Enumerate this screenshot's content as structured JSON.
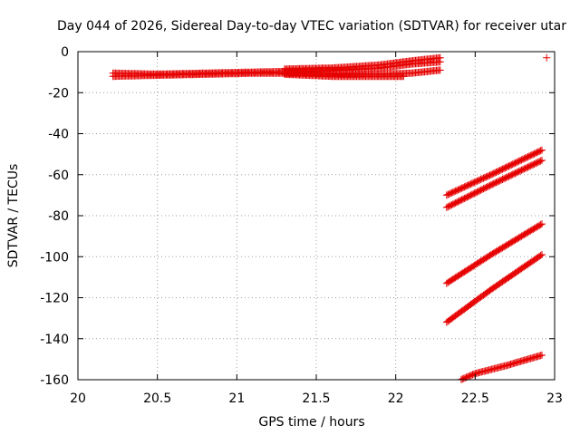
{
  "chart_data": {
    "type": "scatter",
    "title": "Day 044 of 2026, Sidereal Day-to-day VTEC variation (SDTVAR) for receiver utar",
    "xlabel": "GPS time / hours",
    "ylabel": "SDTVAR / TECUs",
    "xlim": [
      20,
      23
    ],
    "ylim": [
      -160,
      0
    ],
    "xticks": [
      "20",
      "20.5",
      "21",
      "21.5",
      "22",
      "22.5",
      "23"
    ],
    "yticks": [
      "0",
      "-20",
      "-40",
      "-60",
      "-80",
      "-100",
      "-120",
      "-140",
      "-160"
    ],
    "grid": true,
    "marker": "+",
    "color": "#e60000",
    "series": [
      {
        "points": [
          [
            20.22,
            -10.5
          ],
          [
            20.5,
            -11
          ],
          [
            20.8,
            -10.5
          ],
          [
            21.1,
            -10
          ],
          [
            21.4,
            -9.5
          ],
          [
            21.7,
            -9
          ],
          [
            21.9,
            -8
          ],
          [
            22.1,
            -6
          ],
          [
            22.28,
            -5
          ]
        ]
      },
      {
        "points": [
          [
            20.22,
            -12
          ],
          [
            20.5,
            -11.5
          ],
          [
            20.8,
            -11
          ],
          [
            21.1,
            -10.5
          ],
          [
            21.4,
            -10.5
          ],
          [
            21.7,
            -11
          ],
          [
            21.9,
            -11
          ],
          [
            22.1,
            -10.5
          ],
          [
            22.28,
            -9
          ]
        ]
      },
      {
        "points": [
          [
            21.3,
            -8.5
          ],
          [
            21.6,
            -8
          ],
          [
            21.9,
            -6.5
          ],
          [
            22.1,
            -4.5
          ],
          [
            22.28,
            -3
          ]
        ]
      },
      {
        "points": [
          [
            21.3,
            -11
          ],
          [
            21.6,
            -12
          ],
          [
            21.9,
            -12
          ],
          [
            22.05,
            -12
          ]
        ]
      },
      {
        "points": [
          [
            22.32,
            -70
          ],
          [
            22.6,
            -60
          ],
          [
            22.92,
            -48
          ]
        ]
      },
      {
        "points": [
          [
            22.32,
            -76
          ],
          [
            22.6,
            -65
          ],
          [
            22.92,
            -53
          ]
        ]
      },
      {
        "points": [
          [
            22.32,
            -113
          ],
          [
            22.6,
            -99
          ],
          [
            22.92,
            -84
          ]
        ]
      },
      {
        "points": [
          [
            22.32,
            -132
          ],
          [
            22.6,
            -116
          ],
          [
            22.92,
            -99
          ]
        ]
      },
      {
        "points": [
          [
            22.38,
            -161
          ],
          [
            22.5,
            -157
          ],
          [
            22.7,
            -153
          ],
          [
            22.92,
            -148
          ]
        ]
      },
      {
        "points": [
          [
            22.95,
            -3
          ]
        ]
      }
    ]
  }
}
